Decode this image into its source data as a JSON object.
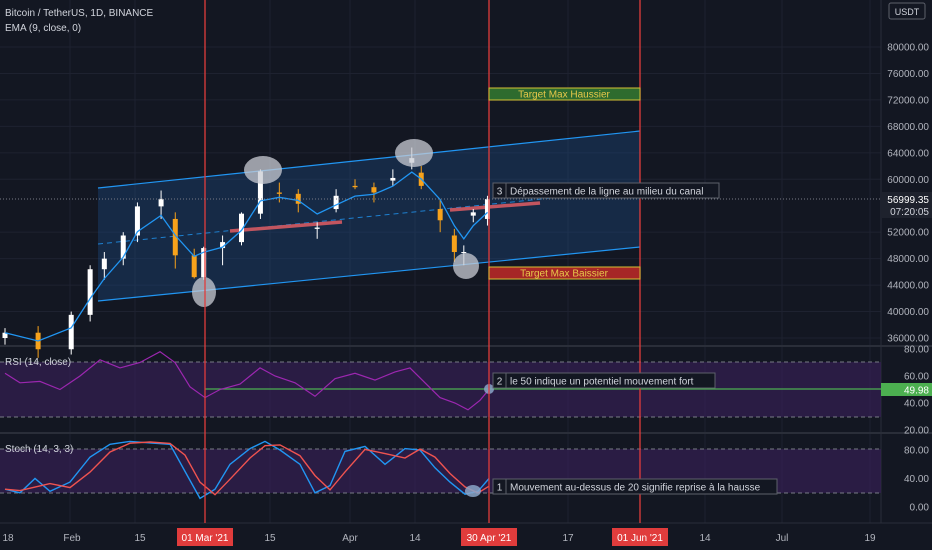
{
  "header": {
    "symbol_line": "Bitcoin / TetherUS, 1D, BINANCE",
    "ema_line": "EMA (9, close, 0)"
  },
  "currency_label": "USDT",
  "price_panel": {
    "y_ticks": [
      "80000.00",
      "76000.00",
      "72000.00",
      "68000.00",
      "64000.00",
      "60000.00",
      "52000.00",
      "48000.00",
      "44000.00",
      "40000.00",
      "36000.00"
    ],
    "y_tick_values": [
      80000,
      76000,
      72000,
      68000,
      64000,
      60000,
      52000,
      48000,
      44000,
      40000,
      36000
    ],
    "current_price": "56999.35",
    "countdown": "07:20:05"
  },
  "rsi_panel": {
    "title": "RSI (14, close)",
    "y_ticks": [
      "80.00",
      "60.00",
      "40.00",
      "20.00"
    ],
    "y_tick_values": [
      80,
      60,
      40,
      20
    ],
    "current_value": "49.98"
  },
  "stoch_panel": {
    "title": "Stoch (14, 3, 3)",
    "y_ticks": [
      "80.00",
      "40.00",
      "0.00"
    ],
    "y_tick_values": [
      80,
      40,
      0
    ]
  },
  "x_axis": {
    "labels": [
      "18",
      "Feb",
      "15",
      "15",
      "Apr",
      "14",
      "17",
      "14",
      "Jul",
      "19"
    ],
    "highlight_labels": [
      "01 Mar '21",
      "30 Apr '21",
      "01 Jun '21"
    ]
  },
  "annotations": {
    "target_max_up": "Target Max Haussier",
    "target_max_down": "Target Max Baissier",
    "note3_num": "3",
    "note3_text": "Dépassement de la ligne au milieu du canal",
    "note2_num": "2",
    "note2_text": "le 50 indique un potentiel mouvement fort",
    "note1_num": "1",
    "note1_text": "Mouvement au-dessus de 20 signifie reprise à la hausse"
  },
  "colors": {
    "background": "#131722",
    "up_candle": "#ffffff",
    "down_candle": "#f7a21b",
    "ema": "#2196f3",
    "channel": "#1e6fd9",
    "vertical_line": "#e03c3c",
    "rsi_line": "#9c27b0",
    "rsi_band": "#3a1f5c",
    "stoch_k": "#2196f3",
    "stoch_d": "#ef5350",
    "target_up": "#2e6b2e",
    "target_down": "#a62626",
    "rsi_50_line": "#4caf50"
  },
  "chart_data": {
    "type": "candlestick",
    "title": "Bitcoin / TetherUS, 1D, BINANCE",
    "x_range": [
      "2021-01-18",
      "2021-07-19"
    ],
    "price_ohlc_approx": [
      [
        "2021-01-18",
        36000,
        37500,
        35000,
        36800
      ],
      [
        "2021-01-25",
        36800,
        37800,
        33000,
        34300
      ],
      [
        "2021-02-01",
        34300,
        40000,
        33500,
        39500
      ],
      [
        "2021-02-05",
        39500,
        47000,
        38500,
        46400
      ],
      [
        "2021-02-08",
        46400,
        49000,
        44800,
        48000
      ],
      [
        "2021-02-12",
        48000,
        52000,
        47000,
        51500
      ],
      [
        "2021-02-15",
        51500,
        56500,
        50500,
        55900
      ],
      [
        "2021-02-20",
        55900,
        58300,
        54000,
        57000
      ],
      [
        "2021-02-23",
        54000,
        55000,
        46500,
        48500
      ],
      [
        "2021-02-27",
        48500,
        49500,
        45000,
        45200
      ],
      [
        "2021-03-01",
        45200,
        49800,
        44800,
        49600
      ],
      [
        "2021-03-05",
        49600,
        51500,
        47000,
        50500
      ],
      [
        "2021-03-09",
        50500,
        55000,
        50000,
        54800
      ],
      [
        "2021-03-13",
        54800,
        61500,
        54000,
        61200
      ],
      [
        "2021-03-17",
        58000,
        59500,
        56500,
        57800
      ],
      [
        "2021-03-21",
        57800,
        58500,
        55000,
        56300
      ],
      [
        "2021-03-25",
        52500,
        53500,
        51000,
        52700
      ],
      [
        "2021-03-29",
        55500,
        58500,
        55000,
        57500
      ],
      [
        "2021-04-02",
        59000,
        60000,
        58500,
        58800
      ],
      [
        "2021-04-06",
        58800,
        59500,
        56500,
        58000
      ],
      [
        "2021-04-10",
        59800,
        61500,
        59000,
        60200
      ],
      [
        "2021-04-14",
        62500,
        64800,
        61500,
        63200
      ],
      [
        "2021-04-16",
        61000,
        62000,
        58500,
        59000
      ],
      [
        "2021-04-20",
        55500,
        57000,
        52000,
        53800
      ],
      [
        "2021-04-23",
        51500,
        52500,
        47500,
        49000
      ],
      [
        "2021-04-25",
        49000,
        50000,
        47000,
        49000
      ],
      [
        "2021-04-27",
        54500,
        55500,
        53500,
        55000
      ],
      [
        "2021-04-30",
        54000,
        57500,
        53000,
        57000
      ]
    ],
    "channel": {
      "upper": [
        [
          "2021-01-30",
          58700
        ],
        [
          "2021-06-01",
          67200
        ]
      ],
      "lower": [
        [
          "2021-01-30",
          43000
        ],
        [
          "2021-06-01",
          49700
        ]
      ]
    },
    "targets": {
      "max_haussier": 72800,
      "max_baissier": 46500
    },
    "rsi": {
      "levels": [
        70,
        50,
        30
      ],
      "current": 49.98
    },
    "stochastic": {
      "levels": [
        80,
        20
      ]
    }
  }
}
